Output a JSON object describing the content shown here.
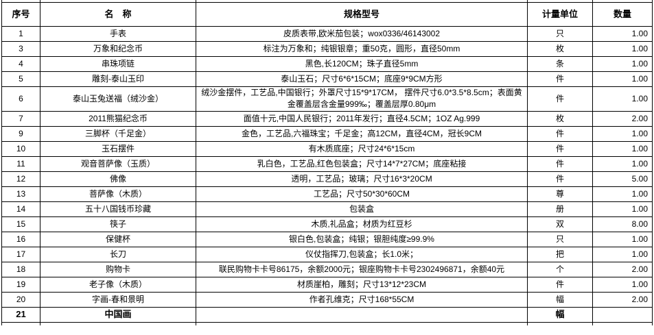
{
  "table": {
    "columns": [
      "序号",
      "名　称",
      "规格型号",
      "计量单位",
      "数量"
    ],
    "rows": [
      {
        "no": "1",
        "name": "手表",
        "spec": "皮质表带,欧米茄包装；wox0336/46143002",
        "unit": "只",
        "qty": "1.00"
      },
      {
        "no": "3",
        "name": "万象和纪念币",
        "spec": "标注为万象和；纯银银章；重50克，圆形，直径50mm",
        "unit": "枚",
        "qty": "1.00"
      },
      {
        "no": "4",
        "name": "串珠项链",
        "spec": "黑色,长120CM；珠子直径5mm",
        "unit": "条",
        "qty": "1.00"
      },
      {
        "no": "5",
        "name": "雕刻-泰山玉印",
        "spec": "泰山玉石；尺寸6*6*15CM；底座9*9CM方形",
        "unit": "件",
        "qty": "1.00"
      },
      {
        "no": "6",
        "name": "泰山玉兔送福（绒沙金）",
        "spec": "绒沙金摆件，工艺品,中国银行；外罩尺寸15*9*17CM，  摆件尺寸6.0*3.5*8.5cm；表面黄金覆盖层含金量999‰；覆盖层厚0.80μm",
        "unit": "件",
        "qty": "1.00"
      },
      {
        "no": "7",
        "name": "2011熊猫纪念币",
        "spec": "面值十元,中国人民银行；2011年发行；直径4.5CM；1OZ Ag.999",
        "unit": "枚",
        "qty": "2.00"
      },
      {
        "no": "9",
        "name": "三脚杯（千足金）",
        "spec": "金色，工艺品,六福珠宝；千足金；高12CM，直径4CM，冠长9CM",
        "unit": "件",
        "qty": "1.00"
      },
      {
        "no": "10",
        "name": "玉石摆件",
        "spec": "有木质底座；尺寸24*6*15cm",
        "unit": "件",
        "qty": "1.00"
      },
      {
        "no": "11",
        "name": "观音菩萨像（玉质）",
        "spec": "乳白色，工艺品,红色包装盒；尺寸14*7*27CM；底座粘接",
        "unit": "件",
        "qty": "1.00"
      },
      {
        "no": "12",
        "name": "佛像",
        "spec": "透明，工艺品；玻璃；尺寸16*3*20CM",
        "unit": "件",
        "qty": "5.00"
      },
      {
        "no": "13",
        "name": "菩萨像（木质）",
        "spec": "工艺品；尺寸50*30*60CM",
        "unit": "尊",
        "qty": "1.00"
      },
      {
        "no": "14",
        "name": "五十八国钱币珍藏",
        "spec": "包装盒",
        "unit": "册",
        "qty": "1.00"
      },
      {
        "no": "15",
        "name": "筷子",
        "spec": "木质,礼品盒；材质为红豆杉",
        "unit": "双",
        "qty": "8.00"
      },
      {
        "no": "16",
        "name": "保健杯",
        "spec": "银白色,包装盒；纯银；银胆纯度≥99.9%",
        "unit": "只",
        "qty": "1.00"
      },
      {
        "no": "17",
        "name": "长刀",
        "spec": "仪仗指挥刀,包装盒；长1.0米；",
        "unit": "把",
        "qty": "1.00"
      },
      {
        "no": "18",
        "name": "购物卡",
        "spec": "联民购物卡卡号86175，余额2000元；银座购物卡卡号2302496871，余额40元",
        "unit": "个",
        "qty": "2.00"
      },
      {
        "no": "19",
        "name": "老子像（木质）",
        "spec": "材质崖柏，雕刻；尺寸13*12*23CM",
        "unit": "件",
        "qty": "1.00"
      },
      {
        "no": "20",
        "name": "字画-春和景明",
        "spec": "作者孔维克；尺寸168*55CM",
        "unit": "幅",
        "qty": "2.00"
      },
      {
        "no": "21",
        "name": "中国画",
        "spec": "",
        "unit": "幅",
        "qty": "",
        "bold": true
      }
    ]
  }
}
